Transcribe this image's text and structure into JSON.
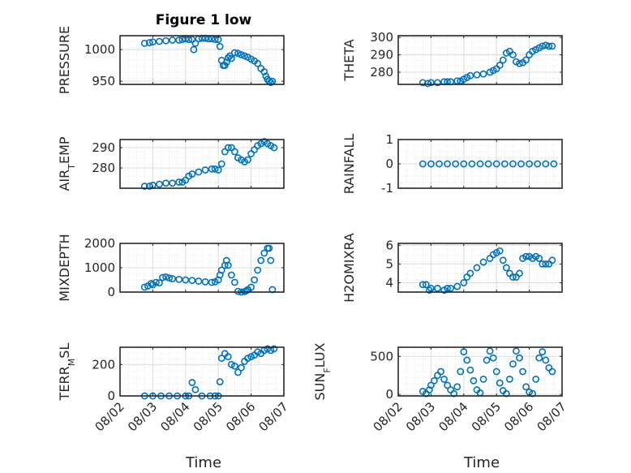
{
  "title": "Figure 1 low",
  "chart_data": [
    {
      "type": "scatter",
      "ylabel": "PRESSURE",
      "xlim": [
        0,
        5
      ],
      "ylim": [
        945,
        1022
      ],
      "yticks": [
        950,
        1000
      ],
      "grid": true,
      "color": "#0072BD",
      "x": [
        0.75,
        0.9,
        1.0,
        1.2,
        1.4,
        1.6,
        1.8,
        1.9,
        2.0,
        2.1,
        2.2,
        2.25,
        2.3,
        2.4,
        2.5,
        2.6,
        2.7,
        2.8,
        2.9,
        3.0,
        3.05,
        3.1,
        3.15,
        3.2,
        3.25,
        3.3,
        3.35,
        3.4,
        3.5,
        3.6,
        3.7,
        3.8,
        3.9,
        4.0,
        4.1,
        4.2,
        4.3,
        4.4,
        4.45,
        4.5,
        4.55,
        4.6,
        4.65
      ],
      "y": [
        1010,
        1011,
        1012,
        1013,
        1014,
        1015,
        1015,
        1016,
        1017,
        1016,
        1016,
        1000,
        1010,
        1017,
        1018,
        1018,
        1017,
        1017,
        1016,
        1016,
        1005,
        983,
        975,
        975,
        980,
        987,
        990,
        986,
        995,
        994,
        992,
        990,
        988,
        985,
        982,
        978,
        970,
        965,
        958,
        953,
        950,
        948,
        950
      ]
    },
    {
      "type": "scatter",
      "ylabel": "THETA",
      "xlim": [
        0,
        5
      ],
      "ylim": [
        273,
        301
      ],
      "yticks": [
        280,
        290,
        300
      ],
      "grid": true,
      "color": "#0072BD",
      "x": [
        0.75,
        0.9,
        1.0,
        1.2,
        1.4,
        1.5,
        1.6,
        1.8,
        1.9,
        2.0,
        2.1,
        2.2,
        2.4,
        2.6,
        2.8,
        2.9,
        3.0,
        3.1,
        3.2,
        3.3,
        3.4,
        3.5,
        3.6,
        3.7,
        3.8,
        3.9,
        4.0,
        4.1,
        4.2,
        4.3,
        4.4,
        4.5,
        4.6,
        4.7
      ],
      "y": [
        274,
        273.5,
        274,
        274,
        274.5,
        274.5,
        274.5,
        275,
        275,
        276,
        277,
        278,
        278.5,
        279,
        280,
        281,
        282,
        284,
        287,
        291,
        292,
        290,
        286,
        285,
        285.5,
        287,
        290,
        292,
        293,
        294,
        295,
        295.5,
        295,
        295
      ]
    },
    {
      "type": "scatter",
      "ylabel": "AIR_TEMP",
      "xlim": [
        0,
        5
      ],
      "ylim": [
        270,
        294
      ],
      "yticks": [
        280,
        290
      ],
      "grid": true,
      "color": "#0072BD",
      "x": [
        0.75,
        0.9,
        1.0,
        1.2,
        1.4,
        1.6,
        1.8,
        1.9,
        2.0,
        2.1,
        2.2,
        2.4,
        2.6,
        2.8,
        2.9,
        3.0,
        3.1,
        3.2,
        3.3,
        3.4,
        3.5,
        3.6,
        3.7,
        3.8,
        3.9,
        4.0,
        4.1,
        4.2,
        4.3,
        4.4,
        4.5,
        4.6,
        4.7
      ],
      "y": [
        271,
        271,
        271.5,
        272,
        272.5,
        272.5,
        273,
        273,
        274,
        276,
        277,
        278,
        279,
        279.5,
        279.5,
        279,
        282,
        288,
        290,
        290,
        288,
        285,
        284,
        283,
        284,
        287,
        289,
        291,
        292,
        293,
        292,
        291,
        290
      ]
    },
    {
      "type": "scatter",
      "ylabel": "RAINFALL",
      "xlim": [
        0,
        5
      ],
      "ylim": [
        -1,
        1
      ],
      "yticks": [
        -1,
        0,
        1
      ],
      "grid": true,
      "color": "#0072BD",
      "x": [
        0.75,
        1.0,
        1.25,
        1.5,
        1.75,
        2.0,
        2.25,
        2.5,
        2.75,
        3.0,
        3.25,
        3.5,
        3.75,
        4.0,
        4.25,
        4.5,
        4.75
      ],
      "y": [
        0,
        0,
        0,
        0,
        0,
        0,
        0,
        0,
        0,
        0,
        0,
        0,
        0,
        0,
        0,
        0,
        0
      ]
    },
    {
      "type": "scatter",
      "ylabel": "MIXDEPTH",
      "xlim": [
        0,
        5
      ],
      "ylim": [
        0,
        2000
      ],
      "yticks": [
        0,
        1000,
        2000
      ],
      "grid": true,
      "color": "#0072BD",
      "x": [
        0.75,
        0.85,
        0.95,
        1.0,
        1.1,
        1.2,
        1.3,
        1.4,
        1.5,
        1.6,
        1.8,
        2.0,
        2.2,
        2.4,
        2.6,
        2.8,
        2.9,
        3.0,
        3.05,
        3.1,
        3.2,
        3.25,
        3.3,
        3.4,
        3.5,
        3.6,
        3.7,
        3.8,
        3.85,
        3.9,
        4.0,
        4.1,
        4.2,
        4.3,
        4.4,
        4.5,
        4.55,
        4.6,
        4.65
      ],
      "y": [
        200,
        250,
        350,
        300,
        400,
        380,
        600,
        620,
        580,
        550,
        520,
        500,
        480,
        450,
        420,
        400,
        420,
        500,
        700,
        900,
        1100,
        1300,
        1100,
        700,
        400,
        30,
        0,
        20,
        50,
        100,
        200,
        500,
        900,
        1300,
        1600,
        1800,
        1800,
        1300,
        100
      ]
    },
    {
      "type": "scatter",
      "ylabel": "H2OMIXRA",
      "xlim": [
        0,
        5
      ],
      "ylim": [
        3.5,
        6.1
      ],
      "yticks": [
        4,
        5,
        6
      ],
      "grid": true,
      "color": "#0072BD",
      "x": [
        0.75,
        0.85,
        0.95,
        1.0,
        1.2,
        1.4,
        1.5,
        1.6,
        1.8,
        2.0,
        2.1,
        2.2,
        2.4,
        2.6,
        2.8,
        2.9,
        3.0,
        3.1,
        3.2,
        3.3,
        3.4,
        3.5,
        3.6,
        3.7,
        3.8,
        3.9,
        4.0,
        4.1,
        4.2,
        4.3,
        4.4,
        4.5,
        4.6,
        4.7
      ],
      "y": [
        3.9,
        3.9,
        3.6,
        3.7,
        3.7,
        3.6,
        3.7,
        3.7,
        3.8,
        4.0,
        4.3,
        4.5,
        4.8,
        5.1,
        5.3,
        5.5,
        5.6,
        5.7,
        5.2,
        4.8,
        4.5,
        4.3,
        4.3,
        4.5,
        5.3,
        5.4,
        5.4,
        5.3,
        5.4,
        5.3,
        5.0,
        5.0,
        5.0,
        5.2
      ]
    },
    {
      "type": "scatter",
      "ylabel": "TERR_MSL",
      "xlim": [
        0,
        5
      ],
      "ylim": [
        0,
        310
      ],
      "yticks": [
        0,
        200
      ],
      "grid": true,
      "color": "#0072BD",
      "x": [
        0.75,
        1.0,
        1.25,
        1.5,
        1.75,
        2.0,
        2.1,
        2.2,
        2.3,
        2.5,
        2.75,
        2.9,
        3.0,
        3.05,
        3.1,
        3.2,
        3.3,
        3.4,
        3.5,
        3.6,
        3.7,
        3.8,
        3.9,
        4.0,
        4.1,
        4.2,
        4.3,
        4.4,
        4.5,
        4.6,
        4.7
      ],
      "y": [
        0,
        0,
        0,
        0,
        0,
        0,
        0,
        85,
        40,
        0,
        0,
        0,
        0,
        90,
        240,
        270,
        250,
        200,
        190,
        150,
        180,
        220,
        240,
        250,
        260,
        280,
        270,
        290,
        300,
        290,
        300
      ]
    },
    {
      "type": "scatter",
      "ylabel": "SUN_FLUX",
      "xlim": [
        0,
        5
      ],
      "ylim": [
        -20,
        620
      ],
      "yticks": [
        0,
        500
      ],
      "grid": true,
      "color": "#0072BD",
      "x": [
        0.75,
        0.85,
        0.95,
        1.0,
        1.1,
        1.2,
        1.3,
        1.4,
        1.5,
        1.6,
        1.7,
        1.8,
        1.9,
        2.0,
        2.1,
        2.2,
        2.3,
        2.4,
        2.5,
        2.6,
        2.7,
        2.8,
        2.9,
        3.0,
        3.1,
        3.2,
        3.3,
        3.4,
        3.5,
        3.6,
        3.7,
        3.8,
        3.9,
        4.0,
        4.1,
        4.2,
        4.3,
        4.4,
        4.5,
        4.6,
        4.7
      ],
      "y": [
        40,
        10,
        60,
        120,
        180,
        250,
        300,
        200,
        120,
        60,
        10,
        100,
        300,
        560,
        450,
        320,
        180,
        60,
        20,
        200,
        450,
        570,
        480,
        300,
        150,
        50,
        10,
        200,
        400,
        570,
        480,
        300,
        100,
        30,
        10,
        200,
        480,
        560,
        450,
        350,
        300
      ]
    }
  ],
  "x_ticks": [
    "08/02",
    "08/03",
    "08/04",
    "08/05",
    "08/06",
    "08/07"
  ],
  "xlabel": "Time"
}
